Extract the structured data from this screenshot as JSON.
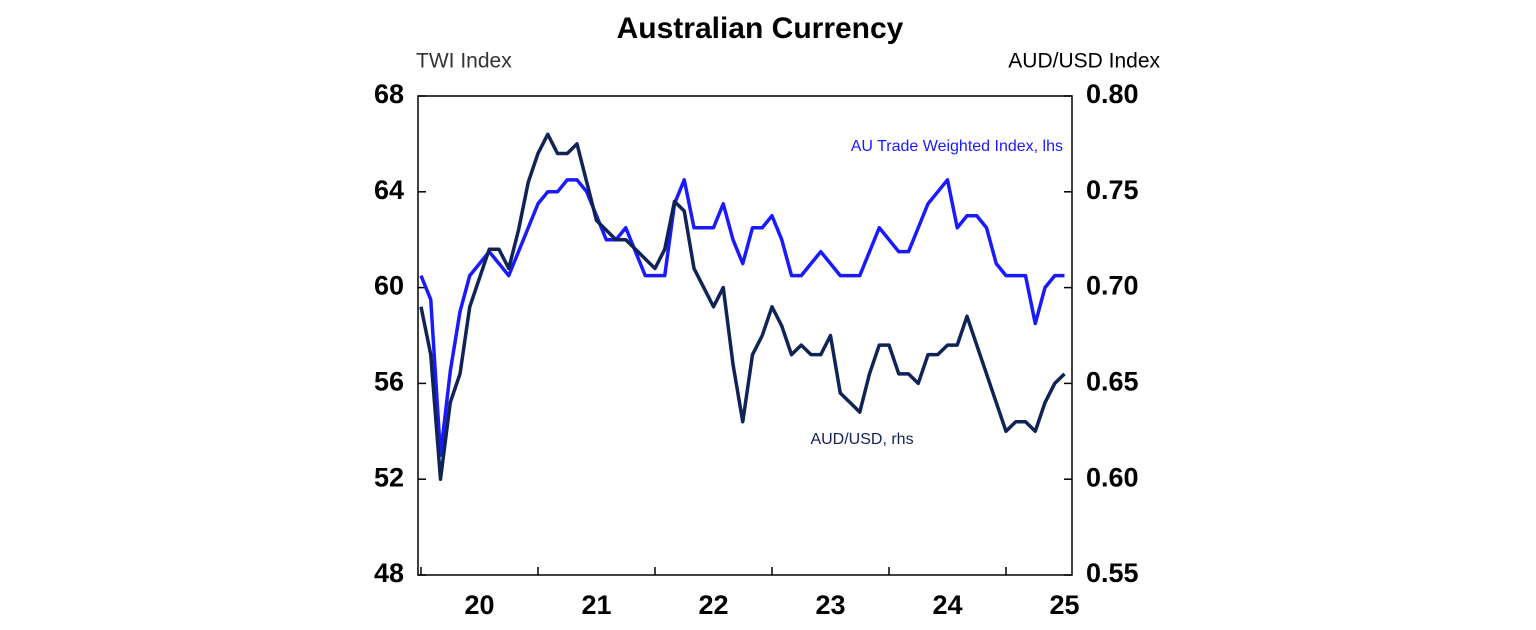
{
  "chart_data": {
    "type": "line",
    "title": "Australian Currency",
    "y_label": "TWI Index",
    "y2_label": "AUD/USD Index",
    "categories": [
      null,
      null,
      null,
      null,
      null,
      null,
      "20",
      null,
      null,
      null,
      null,
      null,
      null,
      null,
      null,
      null,
      null,
      null,
      "21",
      null,
      null,
      null,
      null,
      null,
      null,
      null,
      null,
      null,
      null,
      null,
      "22",
      null,
      null,
      null,
      null,
      null,
      null,
      null,
      null,
      null,
      null,
      null,
      "23",
      null,
      null,
      null,
      null,
      null,
      null,
      null,
      null,
      null,
      null,
      null,
      "24",
      null,
      null,
      null,
      null,
      null,
      null,
      null,
      null,
      null,
      null,
      null,
      "25"
    ],
    "series": [
      {
        "name": "AU Trade Weighted Index, lhs",
        "color": "#1a1aff",
        "axis": "y",
        "values": [
          60.5,
          59.5,
          53,
          56.5,
          59,
          60.5,
          61,
          61.5,
          61,
          60.5,
          61.5,
          62.5,
          63.5,
          64,
          64,
          64.5,
          64.5,
          64,
          63,
          62,
          62,
          62.5,
          61.5,
          60.5,
          60.5,
          60.5,
          63.5,
          64.5,
          62.5,
          62.5,
          62.5,
          63.5,
          62,
          61,
          62.5,
          62.5,
          63,
          62,
          60.5,
          60.5,
          61,
          61.5,
          61,
          60.5,
          60.5,
          60.5,
          61.5,
          62.5,
          62,
          61.5,
          61.5,
          62.5,
          63.5,
          64,
          64.5,
          62.5,
          63,
          63,
          62.5,
          61,
          60.5,
          60.5,
          60.5,
          58.5,
          60,
          60.5,
          60.5
        ]
      },
      {
        "name": "AUD/USD, rhs",
        "color": "#0f2356",
        "axis": "y2",
        "values": [
          0.69,
          0.665,
          0.6,
          0.64,
          0.655,
          0.69,
          0.705,
          0.72,
          0.72,
          0.71,
          0.73,
          0.755,
          0.77,
          0.78,
          0.77,
          0.77,
          0.775,
          0.755,
          0.735,
          0.73,
          0.725,
          0.725,
          0.72,
          0.715,
          0.71,
          0.72,
          0.745,
          0.74,
          0.71,
          0.7,
          0.69,
          0.7,
          0.66,
          0.63,
          0.665,
          0.675,
          0.69,
          0.68,
          0.665,
          0.67,
          0.665,
          0.665,
          0.675,
          0.645,
          0.64,
          0.635,
          0.655,
          0.67,
          0.67,
          0.655,
          0.655,
          0.65,
          0.665,
          0.665,
          0.67,
          0.67,
          0.685,
          0.67,
          0.655,
          0.64,
          0.625,
          0.63,
          0.63,
          0.625,
          0.64,
          0.65,
          0.655
        ]
      }
    ],
    "ylim": [
      48,
      68
    ],
    "yticks": [
      48,
      52,
      56,
      60,
      64,
      68
    ],
    "y2lim": [
      0.55,
      0.8
    ],
    "y2ticks": [
      0.55,
      {
        "value": 0.6,
        "label": "0.60"
      },
      0.65,
      {
        "value": 0.7,
        "label": "0.70"
      },
      0.75,
      {
        "value": 0.8,
        "label": "0.80"
      }
    ]
  }
}
